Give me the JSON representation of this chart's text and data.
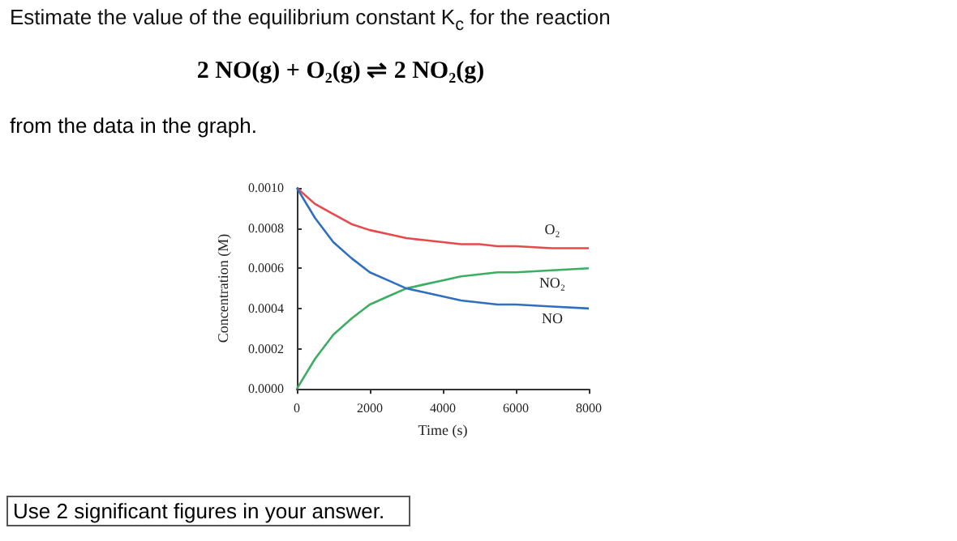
{
  "chart_data": {
    "type": "line",
    "title": "Estimate the value of the equilibrium constant K$_{c}$ for the reaction",
    "subtitle": "2 NO(g) + O₂(g) ⇌ 2 NO₂(g)",
    "annotations": [
      "from the data in the graph.",
      "Use 2 significant figures in your answer."
    ],
    "xlabel": "Time (s)",
    "ylabel": "Concentration (M)",
    "x": [
      0,
      500,
      1000,
      1500,
      2000,
      2500,
      3000,
      3500,
      4000,
      4500,
      5000,
      5500,
      6000,
      7000,
      8000
    ],
    "series": [
      {
        "name": "O₂",
        "color": "#e8494b",
        "values": [
          0.001,
          0.00092,
          0.00087,
          0.00082,
          0.00079,
          0.00077,
          0.00075,
          0.00074,
          0.00073,
          0.00072,
          0.00072,
          0.00071,
          0.00071,
          0.0007,
          0.0007
        ]
      },
      {
        "name": "NO₂",
        "color": "#3cae63",
        "values": [
          0,
          0.00015,
          0.00027,
          0.00035,
          0.00042,
          0.00046,
          0.0005,
          0.00052,
          0.00054,
          0.00056,
          0.00057,
          0.00058,
          0.00058,
          0.00059,
          0.0006
        ]
      },
      {
        "name": "NO",
        "color": "#2f6fbf",
        "values": [
          0.001,
          0.00085,
          0.00073,
          0.00065,
          0.00058,
          0.00054,
          0.0005,
          0.00048,
          0.00046,
          0.00044,
          0.00043,
          0.00042,
          0.00042,
          0.00041,
          0.0004
        ]
      }
    ],
    "xlim": [
      0,
      8000
    ],
    "xticks": [
      0,
      2000,
      4000,
      6000,
      8000
    ],
    "ylim": [
      0,
      0.001
    ],
    "yticks": [
      {
        "value": 0,
        "label": "0.0000"
      },
      {
        "value": 0.0002,
        "label": "0.0002"
      },
      {
        "value": 0.0004,
        "label": "0.0004"
      },
      {
        "value": 0.0006,
        "label": "0.0006"
      },
      {
        "value": 0.0008,
        "label": "0.0008"
      },
      {
        "value": 0.001,
        "label": "0.0010"
      }
    ]
  }
}
